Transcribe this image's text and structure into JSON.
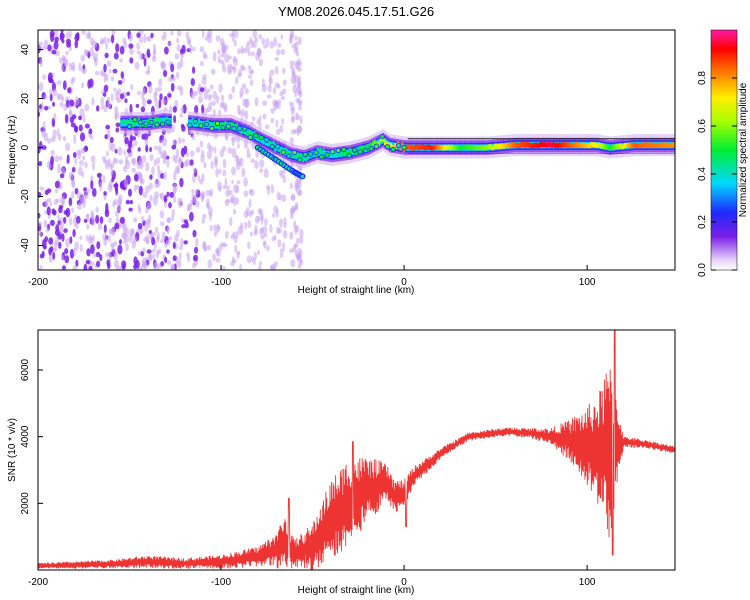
{
  "title": "YM08.2026.045.17.51.G26",
  "colors": {
    "snr_line": "#ee3333",
    "axis": "#000000",
    "scatter_faint": "#c9a3f0",
    "scatter_strong": "#7a1ee6"
  },
  "chart_data": [
    {
      "id": "spectrogram",
      "type": "heatmap",
      "xlabel": "Height of straight line (km)",
      "ylabel": "Frequency (Hz)",
      "xlim": [
        -200,
        148
      ],
      "ylim": [
        -50,
        48
      ],
      "xticks": [
        -200,
        -100,
        0,
        100
      ],
      "yticks": [
        -40,
        -20,
        0,
        20,
        40
      ],
      "xtick_labels": [
        "-200",
        "-100",
        "0",
        "100"
      ],
      "ytick_labels": [
        "-40",
        "-20",
        "0",
        "20",
        "40"
      ],
      "colorbar": {
        "label": "Normalized spectral amplitude",
        "range": [
          0,
          1
        ],
        "ticks": [
          0.0,
          0.2,
          0.4,
          0.6,
          0.8
        ],
        "tick_labels": [
          "0.0",
          "0.2",
          "0.4",
          "0.6",
          "0.8"
        ],
        "colormap": "rainbow (purple-blue-cyan-green-yellow-red-magenta)"
      },
      "ridge": [
        {
          "x": -150,
          "y": 10,
          "a": 0.45
        },
        {
          "x": -140,
          "y": 10,
          "a": 0.5
        },
        {
          "x": -132,
          "y": 11,
          "a": 0.45
        },
        {
          "x": -115,
          "y": 10,
          "a": 0.4
        },
        {
          "x": -105,
          "y": 9,
          "a": 0.45
        },
        {
          "x": -95,
          "y": 9,
          "a": 0.5
        },
        {
          "x": -85,
          "y": 6,
          "a": 0.45
        },
        {
          "x": -78,
          "y": 3,
          "a": 0.4
        },
        {
          "x": -70,
          "y": 0,
          "a": 0.45
        },
        {
          "x": -62,
          "y": -3,
          "a": 0.45
        },
        {
          "x": -55,
          "y": -4,
          "a": 0.45
        },
        {
          "x": -48,
          "y": -2,
          "a": 0.45
        },
        {
          "x": -40,
          "y": -3,
          "a": 0.4
        },
        {
          "x": -30,
          "y": -2,
          "a": 0.5
        },
        {
          "x": -20,
          "y": 0,
          "a": 0.5
        },
        {
          "x": -12,
          "y": 3,
          "a": 0.65
        },
        {
          "x": -8,
          "y": 1,
          "a": 0.7
        },
        {
          "x": 0,
          "y": 0,
          "a": 0.85
        },
        {
          "x": 15,
          "y": 0,
          "a": 0.9
        },
        {
          "x": 30,
          "y": 0,
          "a": 0.5
        },
        {
          "x": 45,
          "y": 0,
          "a": 0.6
        },
        {
          "x": 60,
          "y": 1,
          "a": 0.85
        },
        {
          "x": 80,
          "y": 1,
          "a": 0.95
        },
        {
          "x": 95,
          "y": 1,
          "a": 0.8
        },
        {
          "x": 105,
          "y": 1,
          "a": 0.7
        },
        {
          "x": 112,
          "y": 0,
          "a": 0.5
        },
        {
          "x": 125,
          "y": 1,
          "a": 0.85
        },
        {
          "x": 148,
          "y": 1,
          "a": 0.8
        }
      ],
      "branch": [
        {
          "x": -80,
          "y": 0
        },
        {
          "x": -70,
          "y": -5
        },
        {
          "x": -60,
          "y": -10
        },
        {
          "x": -55,
          "y": -12
        }
      ]
    },
    {
      "id": "snr",
      "type": "line",
      "xlabel": "Height of straight line (km)",
      "ylabel": "SNR (10 * v/v)",
      "xlim": [
        -200,
        148
      ],
      "ylim": [
        0,
        7200
      ],
      "xticks": [
        -200,
        -100,
        0,
        100
      ],
      "yticks": [
        2000,
        4000,
        6000
      ],
      "xtick_labels": [
        "-200",
        "-100",
        "0",
        "100"
      ],
      "ytick_labels": [
        "2000",
        "4000",
        "6000"
      ],
      "envelope": [
        {
          "x": -200,
          "y": 120,
          "amp": 80
        },
        {
          "x": -160,
          "y": 180,
          "amp": 120
        },
        {
          "x": -140,
          "y": 250,
          "amp": 180
        },
        {
          "x": -120,
          "y": 200,
          "amp": 150
        },
        {
          "x": -100,
          "y": 250,
          "amp": 200
        },
        {
          "x": -80,
          "y": 400,
          "amp": 300
        },
        {
          "x": -70,
          "y": 600,
          "amp": 500
        },
        {
          "x": -65,
          "y": 800,
          "amp": 900
        },
        {
          "x": -60,
          "y": 500,
          "amp": 400
        },
        {
          "x": -50,
          "y": 700,
          "amp": 700
        },
        {
          "x": -40,
          "y": 1500,
          "amp": 1200
        },
        {
          "x": -30,
          "y": 2000,
          "amp": 1400
        },
        {
          "x": -20,
          "y": 2400,
          "amp": 1000
        },
        {
          "x": -10,
          "y": 2600,
          "amp": 600
        },
        {
          "x": -5,
          "y": 2200,
          "amp": 500
        },
        {
          "x": 0,
          "y": 2300,
          "amp": 400
        },
        {
          "x": 5,
          "y": 2800,
          "amp": 300
        },
        {
          "x": 20,
          "y": 3500,
          "amp": 150
        },
        {
          "x": 35,
          "y": 4000,
          "amp": 120
        },
        {
          "x": 55,
          "y": 4150,
          "amp": 120
        },
        {
          "x": 70,
          "y": 4100,
          "amp": 150
        },
        {
          "x": 80,
          "y": 4000,
          "amp": 250
        },
        {
          "x": 90,
          "y": 3900,
          "amp": 600
        },
        {
          "x": 100,
          "y": 3700,
          "amp": 1200
        },
        {
          "x": 107,
          "y": 3600,
          "amp": 1800
        },
        {
          "x": 112,
          "y": 3500,
          "amp": 2800
        },
        {
          "x": 116,
          "y": 3800,
          "amp": 1500
        },
        {
          "x": 120,
          "y": 3850,
          "amp": 150
        },
        {
          "x": 135,
          "y": 3750,
          "amp": 120
        },
        {
          "x": 148,
          "y": 3600,
          "amp": 100
        }
      ],
      "features": [
        {
          "x": -63,
          "y": 2150
        },
        {
          "x": -28,
          "y": 3850
        },
        {
          "x": 1,
          "y": 1300
        },
        {
          "x": 114,
          "y": 450
        },
        {
          "x": 115,
          "y": 7200
        }
      ]
    }
  ]
}
